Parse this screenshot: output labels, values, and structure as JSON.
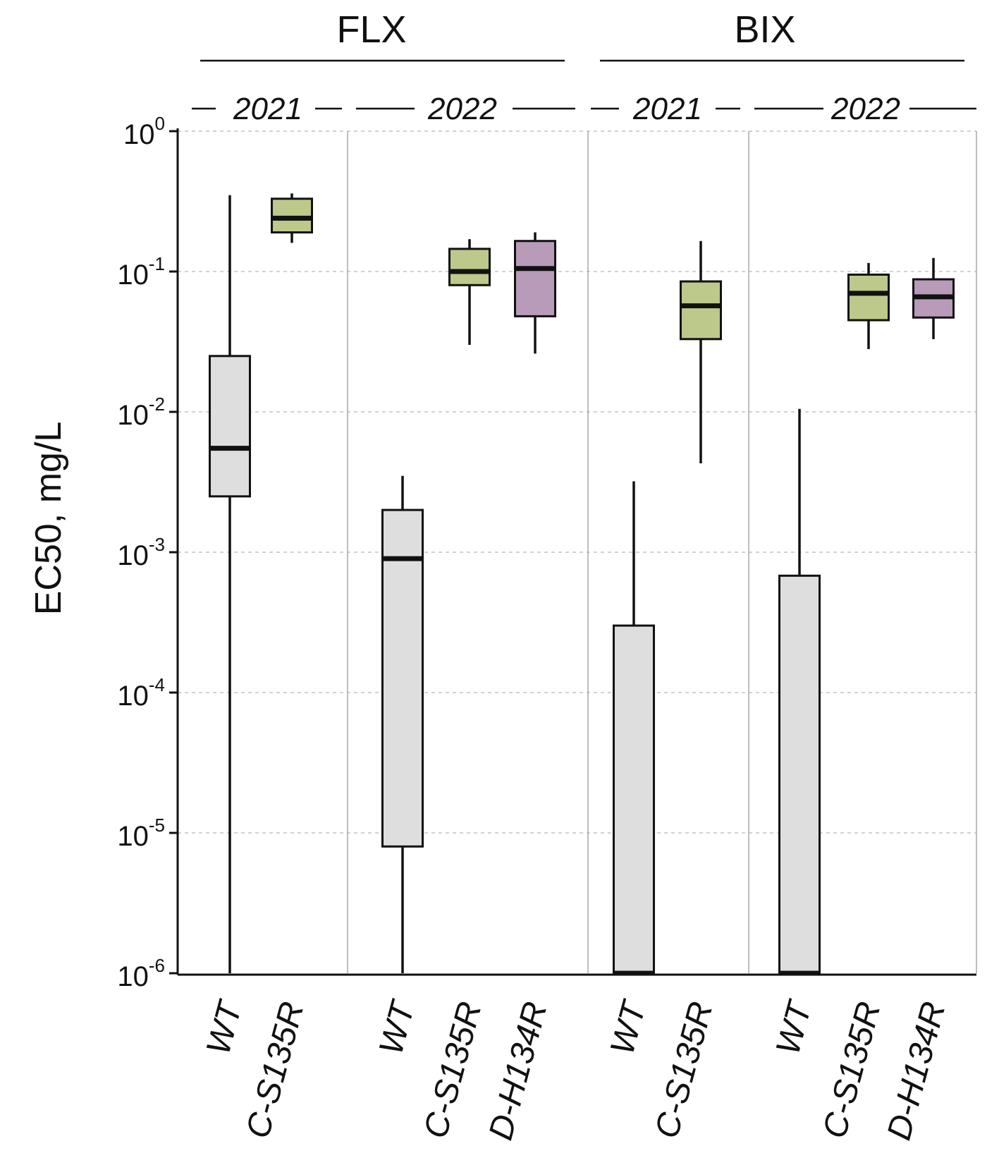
{
  "chart_data": {
    "type": "boxplot",
    "title": "",
    "xlabel": "",
    "ylabel": "EC50, mg/L",
    "yscale": "log",
    "ylim": [
      1e-06,
      1
    ],
    "yticks": [
      {
        "value": 1,
        "base": "10",
        "exp": "0"
      },
      {
        "value": 0.1,
        "base": "10",
        "exp": "-1"
      },
      {
        "value": 0.01,
        "base": "10",
        "exp": "-2"
      },
      {
        "value": 0.001,
        "base": "10",
        "exp": "-3"
      },
      {
        "value": 0.0001,
        "base": "10",
        "exp": "-4"
      },
      {
        "value": 1e-05,
        "base": "10",
        "exp": "-5"
      },
      {
        "value": 1e-06,
        "base": "10",
        "exp": "-6"
      }
    ],
    "grid": true,
    "colors": {
      "WT": "#dedede",
      "C-S135R": "#bcc98a",
      "D-H134R": "#b89ab9"
    },
    "groups": [
      {
        "name": "FLX",
        "years": [
          {
            "name": "2021",
            "boxes": [
              {
                "label": "WT",
                "min": 1e-06,
                "q1": 0.0025,
                "median": 0.0055,
                "q3": 0.025,
                "max": 0.35
              },
              {
                "label": "C-S135R",
                "min": 0.16,
                "q1": 0.19,
                "median": 0.24,
                "q3": 0.33,
                "max": 0.36
              }
            ]
          },
          {
            "name": "2022",
            "boxes": [
              {
                "label": "WT",
                "min": 1e-06,
                "q1": 8e-06,
                "median": 0.0009,
                "q3": 0.002,
                "max": 0.0035
              },
              {
                "label": "C-S135R",
                "min": 0.03,
                "q1": 0.08,
                "median": 0.1,
                "q3": 0.145,
                "max": 0.17
              },
              {
                "label": "D-H134R",
                "min": 0.026,
                "q1": 0.048,
                "median": 0.105,
                "q3": 0.165,
                "max": 0.19
              }
            ]
          }
        ]
      },
      {
        "name": "BIX",
        "years": [
          {
            "name": "2021",
            "boxes": [
              {
                "label": "WT",
                "min": 1e-06,
                "q1": 1e-06,
                "median": 1e-06,
                "q3": 0.0003,
                "max": 0.0032
              },
              {
                "label": "C-S135R",
                "min": 0.0043,
                "q1": 0.033,
                "median": 0.057,
                "q3": 0.085,
                "max": 0.165
              }
            ]
          },
          {
            "name": "2022",
            "boxes": [
              {
                "label": "WT",
                "min": 1e-06,
                "q1": 1e-06,
                "median": 1e-06,
                "q3": 0.00068,
                "max": 0.0105
              },
              {
                "label": "C-S135R",
                "min": 0.028,
                "q1": 0.045,
                "median": 0.07,
                "q3": 0.095,
                "max": 0.115
              },
              {
                "label": "D-H134R",
                "min": 0.033,
                "q1": 0.047,
                "median": 0.066,
                "q3": 0.088,
                "max": 0.125
              }
            ]
          }
        ]
      }
    ]
  }
}
